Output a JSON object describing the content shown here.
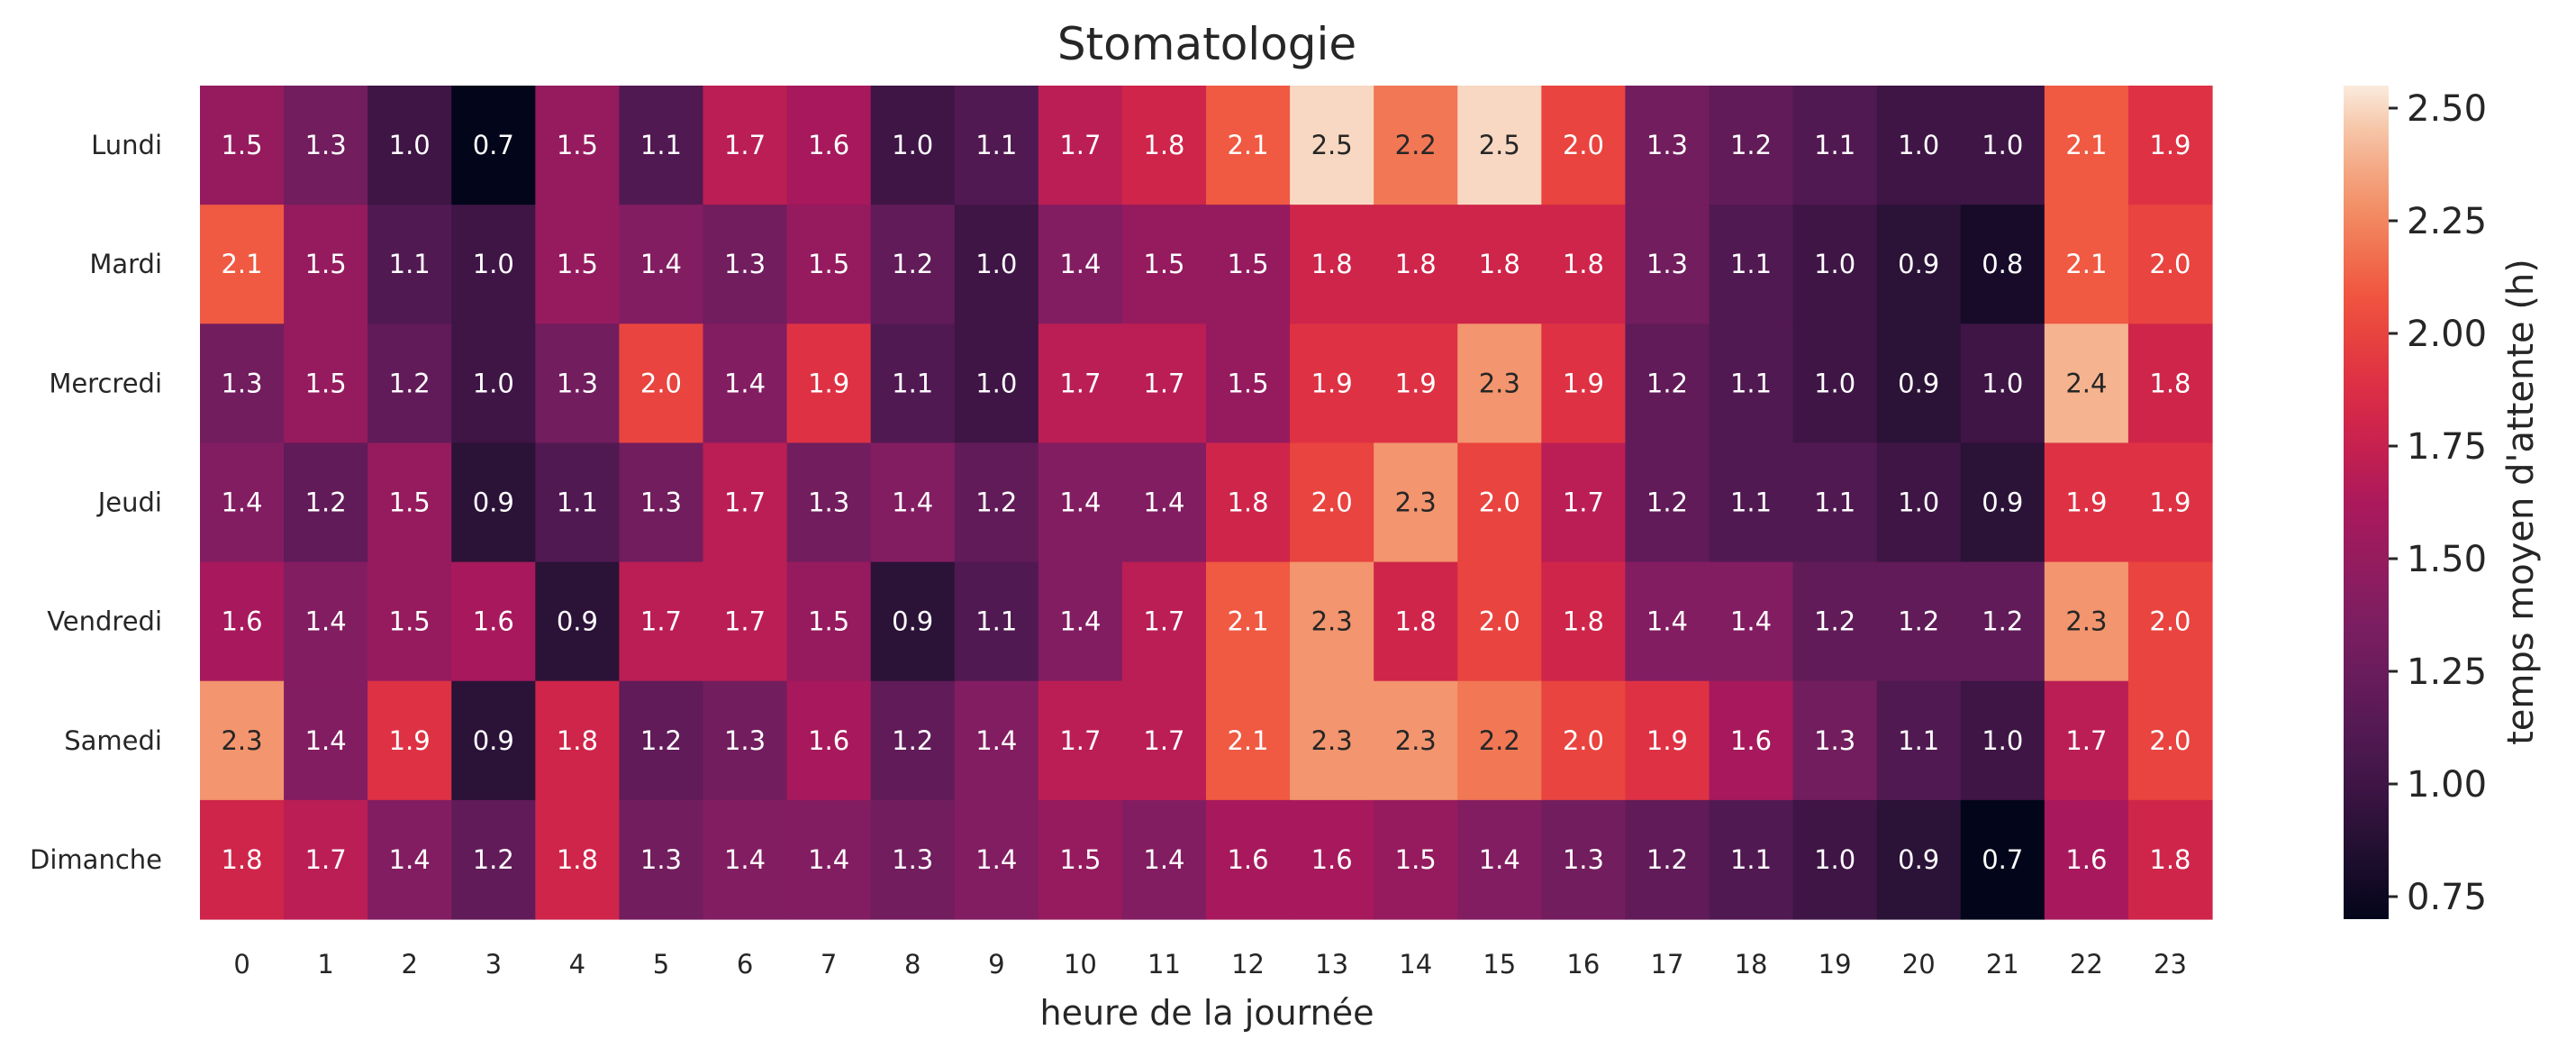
{
  "chart_data": {
    "type": "heatmap",
    "title": "Stomatologie",
    "xlabel": "heure de la journée",
    "colorbar_label": "temps moyen d'attente (h)",
    "x": [
      "0",
      "1",
      "2",
      "3",
      "4",
      "5",
      "6",
      "7",
      "8",
      "9",
      "10",
      "11",
      "12",
      "13",
      "14",
      "15",
      "16",
      "17",
      "18",
      "19",
      "20",
      "21",
      "22",
      "23"
    ],
    "y": [
      "Lundi",
      "Mardi",
      "Mercredi",
      "Jeudi",
      "Vendredi",
      "Samedi",
      "Dimanche"
    ],
    "values": [
      [
        1.5,
        1.3,
        1.0,
        0.7,
        1.5,
        1.1,
        1.7,
        1.6,
        1.0,
        1.1,
        1.7,
        1.8,
        2.1,
        2.5,
        2.2,
        2.5,
        2.0,
        1.3,
        1.2,
        1.1,
        1.0,
        1.0,
        2.1,
        1.9
      ],
      [
        2.1,
        1.5,
        1.1,
        1.0,
        1.5,
        1.4,
        1.3,
        1.5,
        1.2,
        1.0,
        1.4,
        1.5,
        1.5,
        1.8,
        1.8,
        1.8,
        1.8,
        1.3,
        1.1,
        1.0,
        0.9,
        0.8,
        2.1,
        2.0
      ],
      [
        1.3,
        1.5,
        1.2,
        1.0,
        1.3,
        2.0,
        1.4,
        1.9,
        1.1,
        1.0,
        1.7,
        1.7,
        1.5,
        1.9,
        1.9,
        2.3,
        1.9,
        1.2,
        1.1,
        1.0,
        0.9,
        1.0,
        2.4,
        1.8
      ],
      [
        1.4,
        1.2,
        1.5,
        0.9,
        1.1,
        1.3,
        1.7,
        1.3,
        1.4,
        1.2,
        1.4,
        1.4,
        1.8,
        2.0,
        2.3,
        2.0,
        1.7,
        1.2,
        1.1,
        1.1,
        1.0,
        0.9,
        1.9,
        1.9
      ],
      [
        1.6,
        1.4,
        1.5,
        1.6,
        0.9,
        1.7,
        1.7,
        1.5,
        0.9,
        1.1,
        1.4,
        1.7,
        2.1,
        2.3,
        1.8,
        2.0,
        1.8,
        1.4,
        1.4,
        1.2,
        1.2,
        1.2,
        2.3,
        2.0
      ],
      [
        2.3,
        1.4,
        1.9,
        0.9,
        1.8,
        1.2,
        1.3,
        1.6,
        1.2,
        1.4,
        1.7,
        1.7,
        2.1,
        2.3,
        2.3,
        2.2,
        2.0,
        1.9,
        1.6,
        1.3,
        1.1,
        1.0,
        1.7,
        2.0
      ],
      [
        1.8,
        1.7,
        1.4,
        1.2,
        1.8,
        1.3,
        1.4,
        1.4,
        1.3,
        1.4,
        1.5,
        1.4,
        1.6,
        1.6,
        1.5,
        1.4,
        1.3,
        1.2,
        1.1,
        1.0,
        0.9,
        0.7,
        1.6,
        1.8
      ]
    ],
    "colorbar": {
      "vmin": 0.7,
      "vmax": 2.55,
      "ticks": [
        "0.75",
        "1.00",
        "1.25",
        "1.50",
        "1.75",
        "2.00",
        "2.25",
        "2.50"
      ],
      "colormap": "rocket"
    }
  }
}
